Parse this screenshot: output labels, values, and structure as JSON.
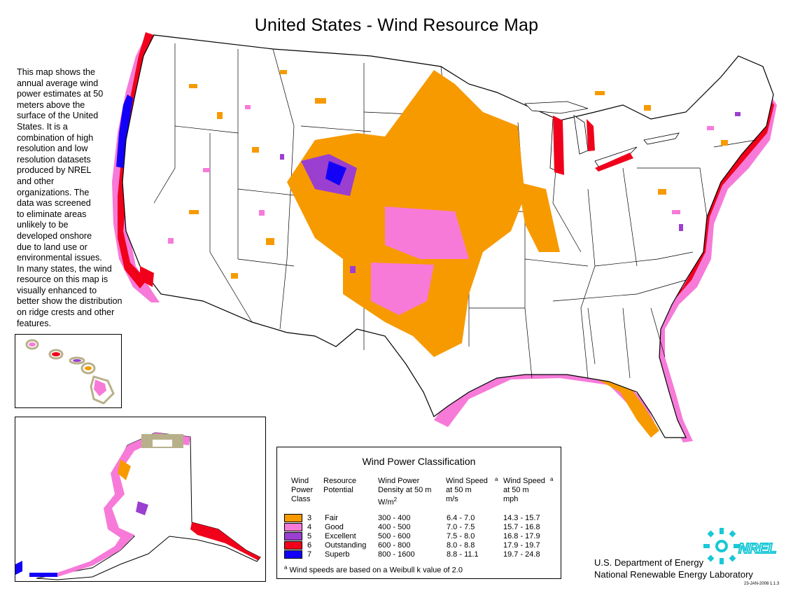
{
  "map": {
    "title": "United States - Wind Resource Map",
    "description": "This map shows the\nannual average wind\npower estimates at 50\nmeters above the\nsurface of the United\nStates.  It is a\ncombination of high\nresolution and low\nresolution datasets\nproduced by NREL\nand other\norganizations.  The\ndata was screened\nto eliminate areas\nunlikely to be\ndeveloped onshore\ndue to land use or\nenvironmental  issues.\nIn many states, the wind\nresource on this map is\nvisually enhanced to\nbetter show the distribution\non ridge crests and other\nfeatures."
  },
  "legend": {
    "title": "Wind Power Classification",
    "headers": {
      "class": "Wind\nPower\nClass",
      "potential": "Resource\nPotential",
      "density": "Wind Power\nDensity at 50 m\nW/m",
      "density_sup": "2",
      "speed_ms": "Wind Speed\nat 50 m\nm/s",
      "speed_ms_sup": "a",
      "speed_mph": "Wind Speed\nat 50 m\nmph",
      "speed_mph_sup": "a"
    },
    "rows": [
      {
        "class": "3",
        "potential": "Fair",
        "density": "300 -  400",
        "speed_ms": "6.4 -  7.0",
        "speed_mph": "14.3 - 15.7",
        "color": "#f79a00"
      },
      {
        "class": "4",
        "potential": "Good",
        "density": "400 -  500",
        "speed_ms": "7.0 -  7.5",
        "speed_mph": "15.7 - 16.8",
        "color": "#f77ad9"
      },
      {
        "class": "5",
        "potential": "Excellent",
        "density": "500 -  600",
        "speed_ms": "7.5 -  8.0",
        "speed_mph": "16.8 - 17.9",
        "color": "#9b3fd1"
      },
      {
        "class": "6",
        "potential": "Outstanding",
        "density": "600 -  800",
        "speed_ms": "8.0 -  8.8",
        "speed_mph": "17.9 - 19.7",
        "color": "#f0001a"
      },
      {
        "class": "7",
        "potential": "Superb",
        "density": "800 - 1600",
        "speed_ms": "8.8 - 11.1",
        "speed_mph": "19.7 - 24.8",
        "color": "#1200f7"
      }
    ],
    "footnote_sup": "a",
    "footnote": "Wind speeds are based on a Weibull k value of 2.0"
  },
  "footer": {
    "logo_text": "NREL",
    "agency_line_1": "U.S. Department of Energy",
    "agency_line_2": "National Renewable Energy Laboratory",
    "date_stamp": "23-JAN-2008 1.1.3"
  },
  "colors": {
    "fair": "#f79a00",
    "good": "#f77ad9",
    "excellent": "#9b3fd1",
    "outstanding": "#f0001a",
    "superb": "#1200f7",
    "logo": "#18c8d6"
  }
}
